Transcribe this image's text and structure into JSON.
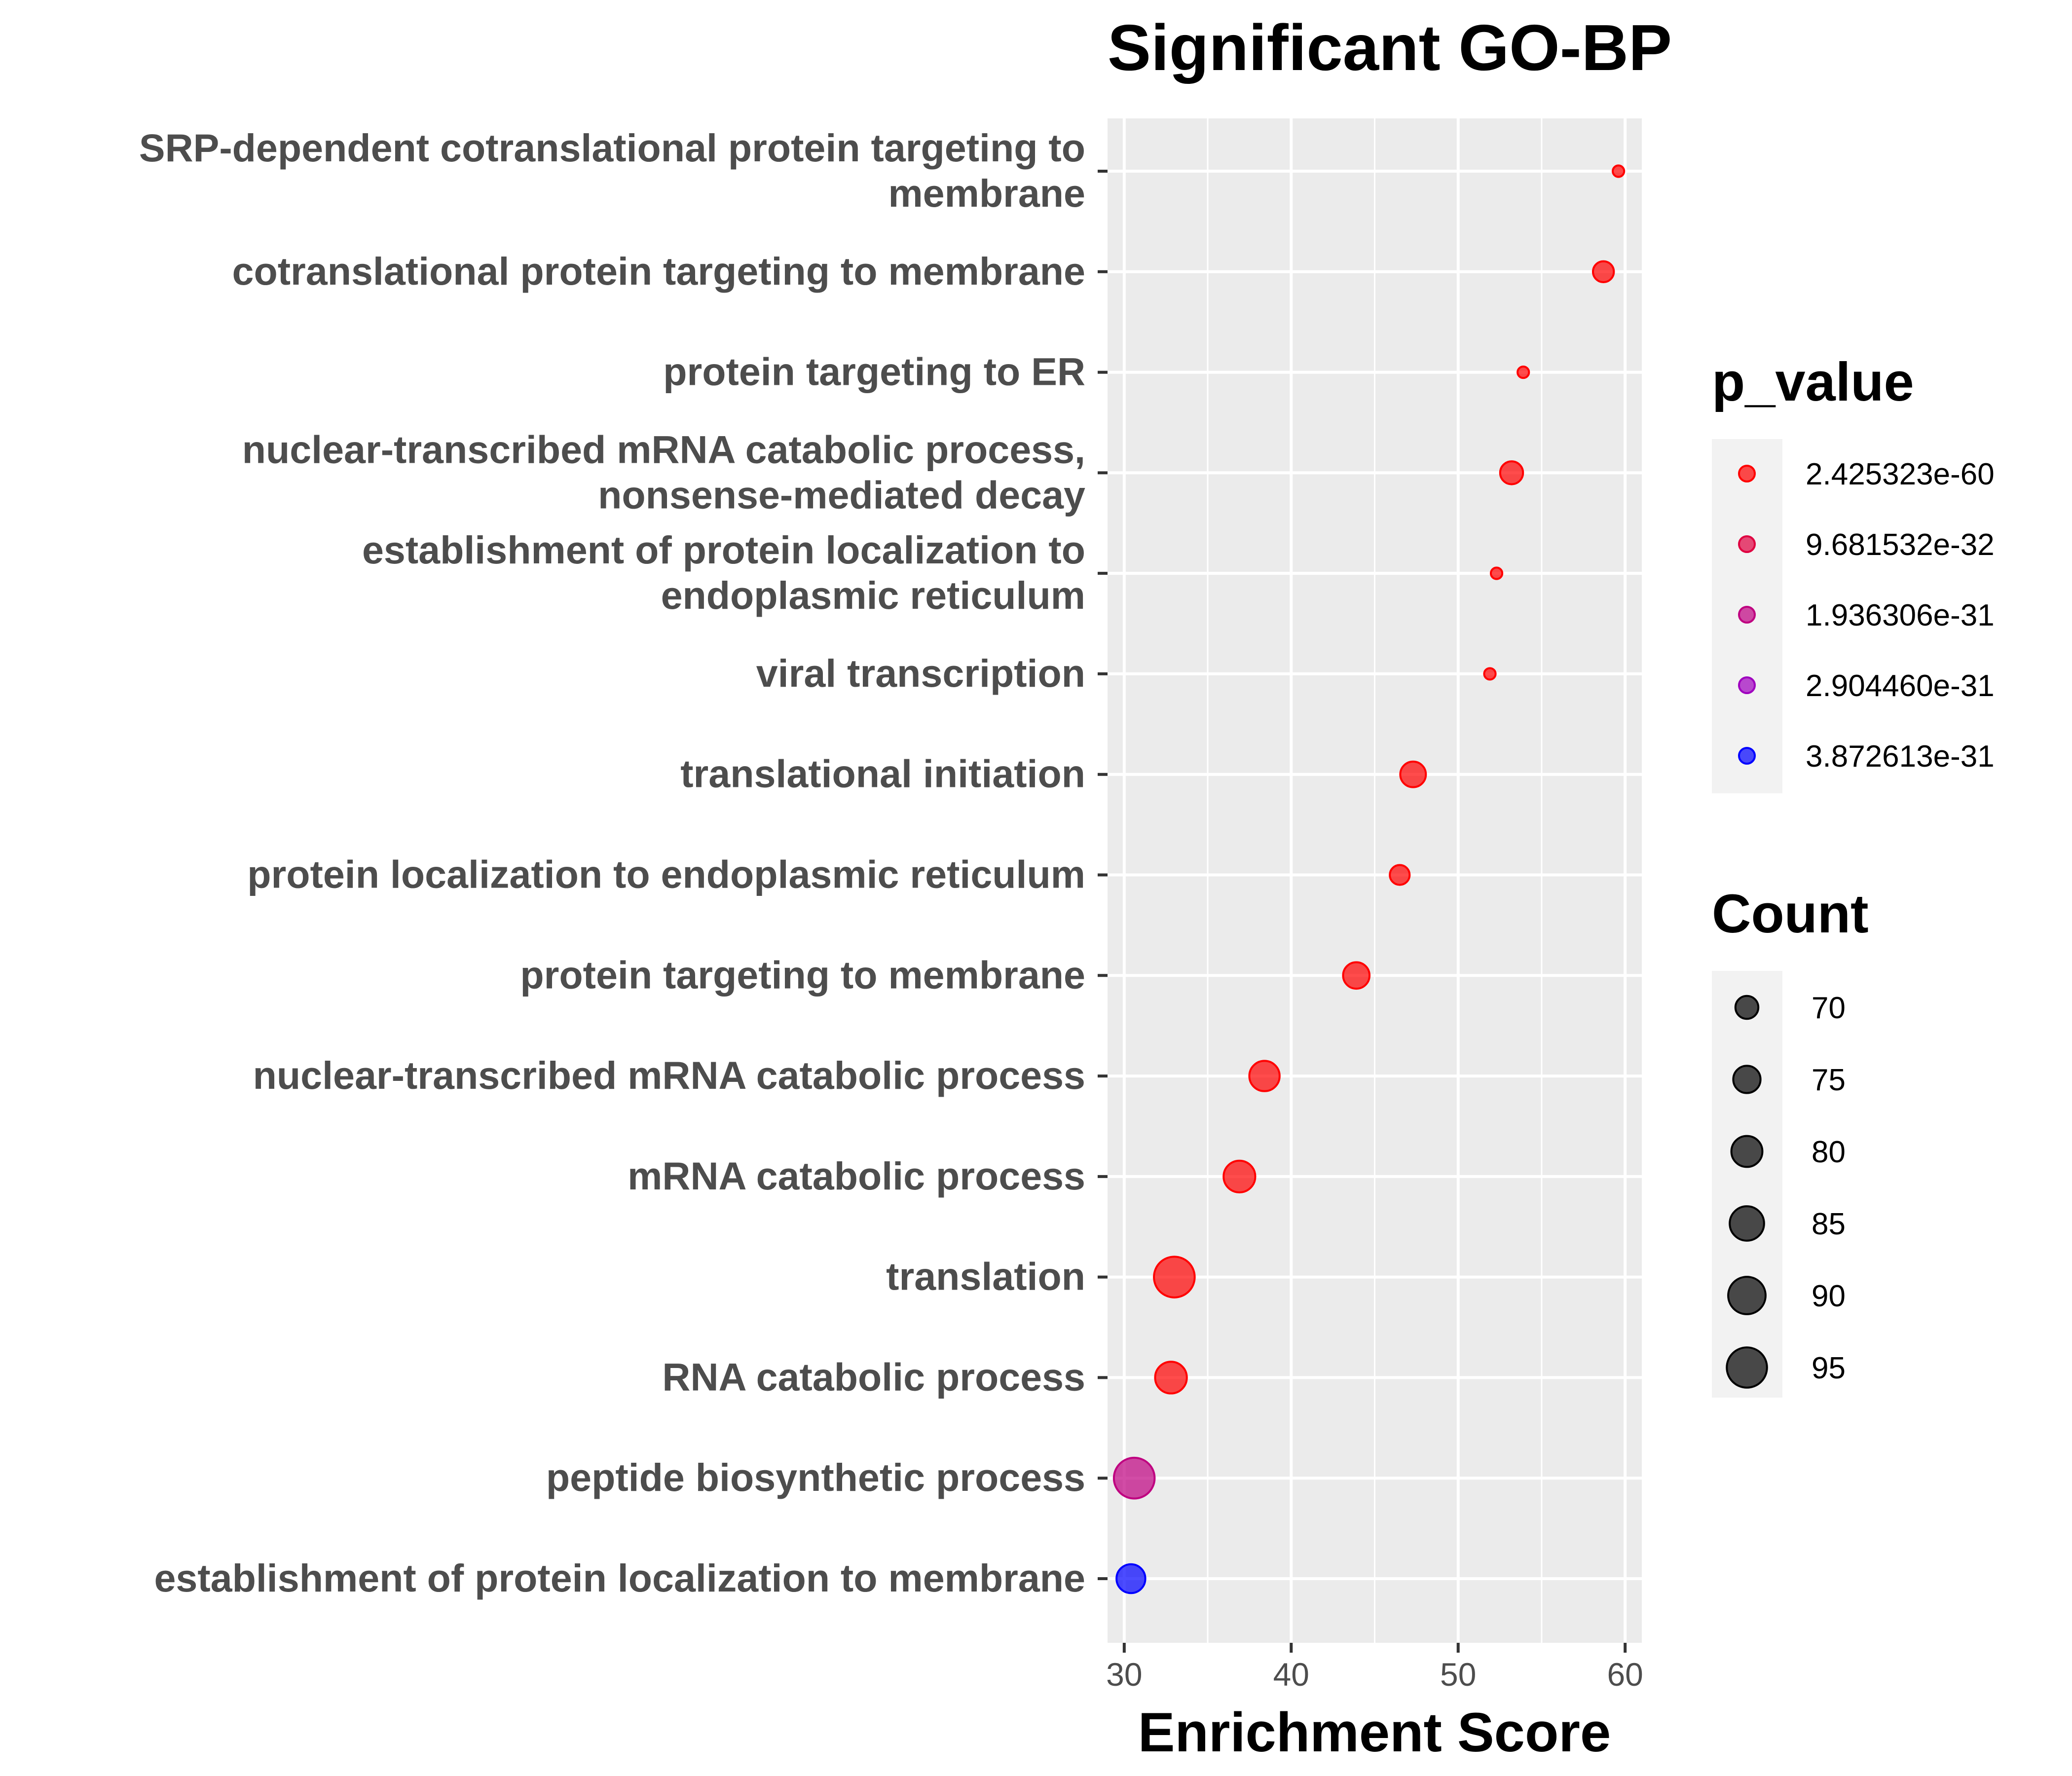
{
  "chart_data": {
    "type": "scatter",
    "title": "Significant GO-BP",
    "xlabel": "Enrichment Score",
    "ylabel": "",
    "xlim": [
      29,
      61
    ],
    "xticks": [
      "30",
      "40",
      "50",
      "60"
    ],
    "grid": true,
    "legend_placement": "right",
    "color_legend": {
      "title": "p_value",
      "entries": [
        {
          "label": "2.425323e-60",
          "color": "#ff0000"
        },
        {
          "label": "9.681532e-32",
          "color": "#df0040"
        },
        {
          "label": "1.936306e-31",
          "color": "#bf0080"
        },
        {
          "label": "2.904460e-31",
          "color": "#9f00bf"
        },
        {
          "label": "3.872613e-31",
          "color": "#0000ff"
        }
      ]
    },
    "size_legend": {
      "title": "Count",
      "entries": [
        {
          "label": "70",
          "value": 70
        },
        {
          "label": "75",
          "value": 75
        },
        {
          "label": "80",
          "value": 80
        },
        {
          "label": "85",
          "value": 85
        },
        {
          "label": "90",
          "value": 90
        },
        {
          "label": "95",
          "value": 95
        }
      ]
    },
    "terms": [
      {
        "lines": [
          "SRP-dependent cotranslational protein targeting to",
          "membrane"
        ],
        "x": 59.6,
        "count": 61,
        "color": "#ff0000"
      },
      {
        "lines": [
          "cotranslational protein targeting to membrane"
        ],
        "x": 58.7,
        "count": 68,
        "color": "#ff0000"
      },
      {
        "lines": [
          "protein targeting to ER"
        ],
        "x": 53.9,
        "count": 61,
        "color": "#ff0000"
      },
      {
        "lines": [
          "nuclear-transcribed mRNA catabolic process,",
          "nonsense-mediated decay"
        ],
        "x": 53.2,
        "count": 70,
        "color": "#ff0000"
      },
      {
        "lines": [
          "establishment of protein localization to",
          "endoplasmic reticulum"
        ],
        "x": 52.3,
        "count": 61,
        "color": "#ff0000"
      },
      {
        "lines": [
          "viral transcription"
        ],
        "x": 51.9,
        "count": 61,
        "color": "#ff0000"
      },
      {
        "lines": [
          "translational initiation"
        ],
        "x": 47.3,
        "count": 73,
        "color": "#ff0000"
      },
      {
        "lines": [
          "protein localization to endoplasmic reticulum"
        ],
        "x": 46.5,
        "count": 67,
        "color": "#ff0000"
      },
      {
        "lines": [
          "protein targeting to membrane"
        ],
        "x": 43.9,
        "count": 74,
        "color": "#ff0000"
      },
      {
        "lines": [
          "nuclear-transcribed mRNA catabolic process"
        ],
        "x": 38.4,
        "count": 79,
        "color": "#ff0000"
      },
      {
        "lines": [
          "mRNA catabolic process"
        ],
        "x": 36.9,
        "count": 81,
        "color": "#ff0000"
      },
      {
        "lines": [
          "translation"
        ],
        "x": 33.0,
        "count": 96,
        "color": "#ff0000"
      },
      {
        "lines": [
          "RNA catabolic process"
        ],
        "x": 32.8,
        "count": 81,
        "color": "#ff0000"
      },
      {
        "lines": [
          "peptide biosynthetic process"
        ],
        "x": 30.6,
        "count": 96,
        "color": "#bf0080"
      },
      {
        "lines": [
          "establishment of protein localization to membrane"
        ],
        "x": 30.4,
        "count": 77,
        "color": "#0000ff"
      }
    ]
  }
}
